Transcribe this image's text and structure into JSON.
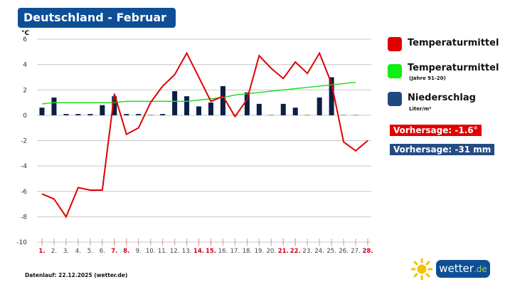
{
  "title": "Deutschland - Februar",
  "legend": {
    "temp": {
      "label": "Temperaturmittel",
      "color": "#e00000"
    },
    "normal": {
      "label": "Temperaturmittel",
      "sub": "(Jahre 91-20)",
      "color": "#11ee11"
    },
    "precip": {
      "label": "Niederschlag",
      "sub": "Liter/m²",
      "color": "#1f4a80"
    }
  },
  "forecast": {
    "temp": "Vorhersage: -1.6°",
    "precip": "Vorhersage: -31 mm",
    "temp_color": "#e30000",
    "precip_color": "#264b85"
  },
  "footer": "Datenlauf: 22.12.2025 (wetter.de)",
  "logo": {
    "main": "wetter",
    "suffix": ".de"
  },
  "chart_data": {
    "type": "line+bar",
    "ylabel": "°C",
    "ylim": [
      -10,
      6
    ],
    "yticks": [
      "6",
      "4",
      "2",
      "0",
      "-2",
      "-4",
      "-6",
      "-8",
      "-10"
    ],
    "grid": true,
    "categories": [
      "1.",
      "2.",
      "3.",
      "4.",
      "5.",
      "6.",
      "7.",
      "8.",
      "9.",
      "10.",
      "11.",
      "12.",
      "13.",
      "14.",
      "15.",
      "16.",
      "17.",
      "18.",
      "19.",
      "20.",
      "21.",
      "22.",
      "23.",
      "24.",
      "25.",
      "26.",
      "27.",
      "28."
    ],
    "weekend_days": [
      1,
      7,
      8,
      14,
      15,
      21,
      22,
      28
    ],
    "series": [
      {
        "name": "Temperaturmittel",
        "type": "line",
        "color": "#e00000",
        "values": [
          -6.2,
          -6.6,
          -8.0,
          -5.7,
          -5.9,
          -5.9,
          1.7,
          -1.5,
          -1.0,
          1.0,
          2.3,
          3.2,
          4.9,
          3.0,
          1.1,
          1.5,
          -0.1,
          1.25,
          4.7,
          3.7,
          2.9,
          4.2,
          3.3,
          4.9,
          2.5,
          -2.1,
          -2.8,
          -2.0
        ]
      },
      {
        "name": "Temperaturmittel (Jahre 91-20)",
        "type": "line",
        "color": "#22dd22",
        "values": [
          0.9,
          1.0,
          1.0,
          1.0,
          1.0,
          1.0,
          1.0,
          1.1,
          1.1,
          1.1,
          1.1,
          1.1,
          1.1,
          1.2,
          1.3,
          1.4,
          1.6,
          1.7,
          1.8,
          1.9,
          2.0,
          2.1,
          2.2,
          2.3,
          2.4,
          2.5,
          2.6,
          null
        ]
      },
      {
        "name": "Niederschlag",
        "type": "bar",
        "color": "#0b1f45",
        "values": [
          0.6,
          1.4,
          0.1,
          0.1,
          0.1,
          0.8,
          1.5,
          0.1,
          0.1,
          0,
          0.1,
          1.9,
          1.5,
          0.7,
          1.0,
          2.3,
          0,
          1.8,
          0.9,
          0,
          0.9,
          0.6,
          0,
          1.4,
          3.0,
          0,
          0,
          null
        ]
      }
    ]
  }
}
